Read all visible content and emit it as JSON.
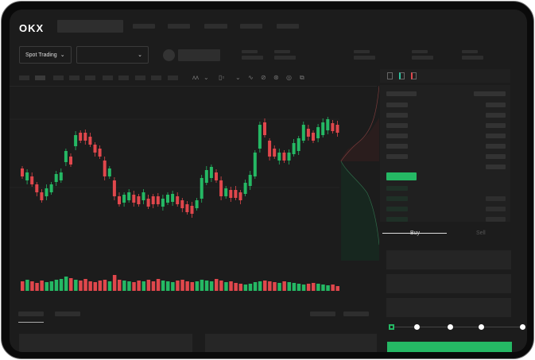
{
  "header": {
    "logo": "OKX"
  },
  "toolbar": {
    "mode_label": "Spot Trading",
    "mode_icon": "chevron-down-icon",
    "pair_icon": "chevron-down-icon"
  },
  "trade": {
    "buy_label": "Buy",
    "sell_label": "Sell",
    "slider_value": 0,
    "slider_steps": 5
  },
  "colors": {
    "up": "#25b864",
    "down": "#e0474c",
    "bg": "#1c1c1c"
  },
  "chart": {
    "type": "candlestick",
    "candles": [
      [
        100,
        90
      ],
      [
        85,
        95
      ],
      [
        90,
        80
      ],
      [
        80,
        70
      ],
      [
        70,
        60
      ],
      [
        65,
        75
      ],
      [
        70,
        80
      ],
      [
        83,
        93
      ],
      [
        85,
        95
      ],
      [
        108,
        122
      ],
      [
        115,
        105
      ],
      [
        128,
        142
      ],
      [
        145,
        135
      ],
      [
        145,
        135
      ],
      [
        140,
        130
      ],
      [
        130,
        120
      ],
      [
        125,
        115
      ],
      [
        110,
        90
      ],
      [
        90,
        100
      ],
      [
        85,
        65
      ],
      [
        65,
        55
      ],
      [
        57,
        67
      ],
      [
        60,
        70
      ],
      [
        67,
        57
      ],
      [
        65,
        55
      ],
      [
        60,
        70
      ],
      [
        62,
        52
      ],
      [
        65,
        55
      ],
      [
        65,
        55
      ],
      [
        52,
        62
      ],
      [
        57,
        67
      ],
      [
        58,
        68
      ],
      [
        65,
        55
      ],
      [
        60,
        50
      ],
      [
        55,
        45
      ],
      [
        53,
        43
      ],
      [
        50,
        60
      ],
      [
        62,
        88
      ],
      [
        82,
        98
      ],
      [
        88,
        102
      ],
      [
        95,
        85
      ],
      [
        85,
        65
      ],
      [
        65,
        75
      ],
      [
        73,
        63
      ],
      [
        73,
        63
      ],
      [
        70,
        60
      ],
      [
        68,
        82
      ],
      [
        78,
        92
      ],
      [
        90,
        120
      ],
      [
        125,
        155
      ],
      [
        158,
        142
      ],
      [
        135,
        115
      ],
      [
        125,
        115
      ],
      [
        110,
        120
      ],
      [
        120,
        110
      ],
      [
        110,
        120
      ],
      [
        118,
        132
      ],
      [
        122,
        138
      ],
      [
        135,
        155
      ],
      [
        150,
        140
      ],
      [
        145,
        135
      ],
      [
        138,
        152
      ],
      [
        142,
        158
      ],
      [
        148,
        162
      ],
      [
        157,
        147
      ],
      [
        155,
        145
      ]
    ],
    "volumes": [
      12,
      14,
      12,
      10,
      13,
      11,
      12,
      14,
      15,
      18,
      16,
      14,
      13,
      15,
      12,
      11,
      13,
      14,
      12,
      20,
      14,
      13,
      12,
      11,
      13,
      12,
      14,
      12,
      15,
      13,
      12,
      11,
      13,
      14,
      12,
      11,
      12,
      14,
      13,
      12,
      15,
      13,
      11,
      12,
      10,
      9,
      8,
      9,
      11,
      12,
      13,
      12,
      11,
      10,
      12,
      11,
      10,
      9,
      8,
      9,
      10,
      9,
      8,
      7,
      8,
      6
    ]
  }
}
